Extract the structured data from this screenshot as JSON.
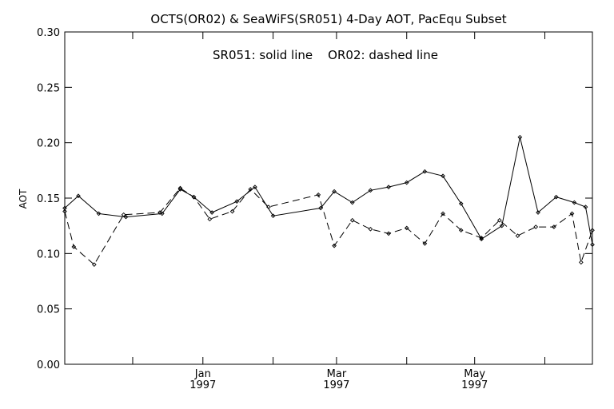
{
  "chart_data": {
    "type": "line",
    "title": "OCTS(OR02) & SeaWiFS(SR051) 4-Day AOT, PacEqu Subset",
    "annotation": "SR051: solid line    OR02: dashed line",
    "xlabel": "",
    "ylabel": "AOT",
    "xlim": [
      "1996-11-01",
      "1997-06-22"
    ],
    "ylim": [
      0.0,
      0.3
    ],
    "y_ticks": [
      "0.00",
      "0.05",
      "0.10",
      "0.15",
      "0.20",
      "0.25",
      "0.30"
    ],
    "x_ticks": [
      {
        "date": "1997-01-01",
        "month": "Jan",
        "year": "1997"
      },
      {
        "date": "1997-03-01",
        "month": "Mar",
        "year": "1997"
      },
      {
        "date": "1997-05-01",
        "month": "May",
        "year": "1997"
      }
    ],
    "grid": false,
    "legend": "none",
    "series": [
      {
        "name": "SR051",
        "style": "solid",
        "color": "#000000",
        "points": [
          [
            "1996-11-01",
            0.141
          ],
          [
            "1996-11-07",
            0.152
          ],
          [
            "1996-11-16",
            0.136
          ],
          [
            "1996-11-28",
            0.133
          ],
          [
            "1996-12-14",
            0.136
          ],
          [
            "1996-12-22",
            0.158
          ],
          [
            "1996-12-28",
            0.151
          ],
          [
            "1997-01-05",
            0.137
          ],
          [
            "1997-01-16",
            0.147
          ],
          [
            "1997-01-24",
            0.16
          ],
          [
            "1997-02-01",
            0.134
          ],
          [
            "1997-02-22",
            0.141
          ],
          [
            "1997-02-28",
            0.156
          ],
          [
            "1997-03-08",
            0.146
          ],
          [
            "1997-03-16",
            0.157
          ],
          [
            "1997-03-24",
            0.16
          ],
          [
            "1997-04-01",
            0.164
          ],
          [
            "1997-04-09",
            0.174
          ],
          [
            "1997-04-17",
            0.17
          ],
          [
            "1997-04-25",
            0.145
          ],
          [
            "1997-05-04",
            0.113
          ],
          [
            "1997-05-13",
            0.125
          ],
          [
            "1997-05-21",
            0.205
          ],
          [
            "1997-05-29",
            0.137
          ],
          [
            "1997-06-06",
            0.151
          ],
          [
            "1997-06-14",
            0.146
          ],
          [
            "1997-06-19",
            0.142
          ],
          [
            "1997-06-22",
            0.108
          ]
        ]
      },
      {
        "name": "OR02",
        "style": "dashed",
        "color": "#000000",
        "points": [
          [
            "1996-11-01",
            0.138
          ],
          [
            "1996-11-05",
            0.106
          ],
          [
            "1996-11-14",
            0.09
          ],
          [
            "1996-11-27",
            0.135
          ],
          [
            "1996-12-13",
            0.137
          ],
          [
            "1996-12-22",
            0.159
          ],
          [
            "1996-12-28",
            0.151
          ],
          [
            "1997-01-04",
            0.131
          ],
          [
            "1997-01-14",
            0.138
          ],
          [
            "1997-01-22",
            0.158
          ],
          [
            "1997-01-30",
            0.142
          ],
          [
            "1997-02-21",
            0.153
          ],
          [
            "1997-02-28",
            0.107
          ],
          [
            "1997-03-08",
            0.13
          ],
          [
            "1997-03-16",
            0.122
          ],
          [
            "1997-03-24",
            0.118
          ],
          [
            "1997-04-01",
            0.123
          ],
          [
            "1997-04-09",
            0.109
          ],
          [
            "1997-04-17",
            0.136
          ],
          [
            "1997-04-25",
            0.121
          ],
          [
            "1997-05-04",
            0.114
          ],
          [
            "1997-05-12",
            0.13
          ],
          [
            "1997-05-20",
            0.116
          ],
          [
            "1997-05-28",
            0.124
          ],
          [
            "1997-06-05",
            0.124
          ],
          [
            "1997-06-13",
            0.136
          ],
          [
            "1997-06-17",
            0.092
          ],
          [
            "1997-06-22",
            0.121
          ]
        ]
      }
    ]
  }
}
